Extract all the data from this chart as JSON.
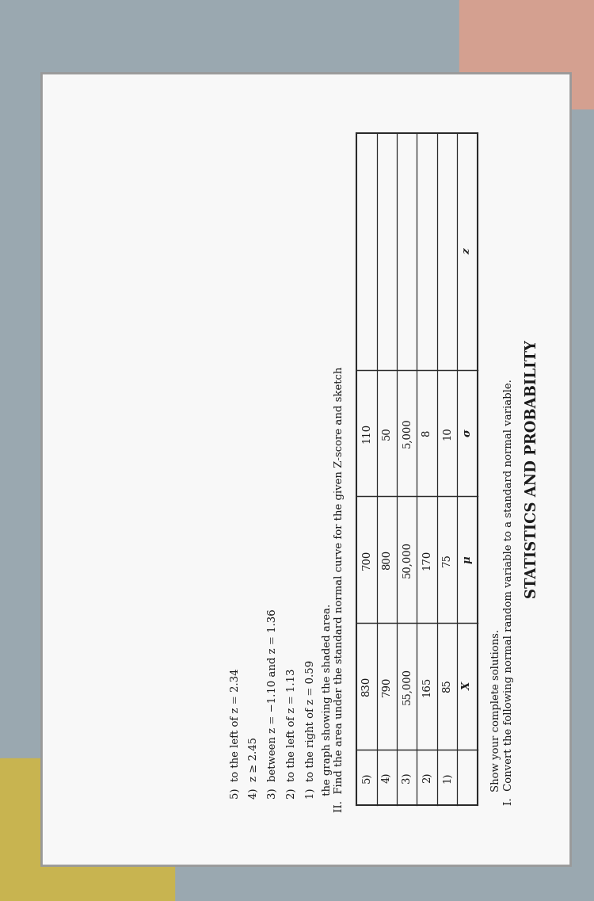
{
  "title": "STATISTICS AND PROBABILITY",
  "section_I_line1": "I.  Convert the following normal random variable to a standard normal variable.",
  "section_I_line2": "    Show your complete solutions.",
  "table_headers": [
    "",
    "X",
    "μ",
    "σ",
    "z"
  ],
  "table_rows": [
    [
      "1)",
      "85",
      "75",
      "10",
      ""
    ],
    [
      "2)",
      "165",
      "170",
      "8",
      ""
    ],
    [
      "3)",
      "55,000",
      "50,000",
      "5,000",
      ""
    ],
    [
      "4)",
      "790",
      "800",
      "50",
      ""
    ],
    [
      "5)",
      "830",
      "700",
      "110",
      ""
    ]
  ],
  "section_II_line1": "II.  Find the area under the standard normal curve for the given Z-score and sketch",
  "section_II_line2": "     the graph showing the shaded area.",
  "section_II_items": [
    "1)  to the right of z = 0.59",
    "2)  to the left of z = 1.13",
    "3)  between z = −1.10 and z = 1.36",
    "4)  z ≥ 2.45",
    "5)  to the left of z = 2.34"
  ],
  "bg_color_top": "#c8d4dc",
  "bg_color_left": "#b0b8b0",
  "bg_color_bottom": "#d4c890",
  "paper_color": "#f5f5f8",
  "text_color": "#1a1a1a",
  "table_line_color": "#2a2a2a",
  "rotation_deg": 90,
  "font_size_title": 13,
  "font_size_body": 9.5,
  "font_size_table": 9.5
}
